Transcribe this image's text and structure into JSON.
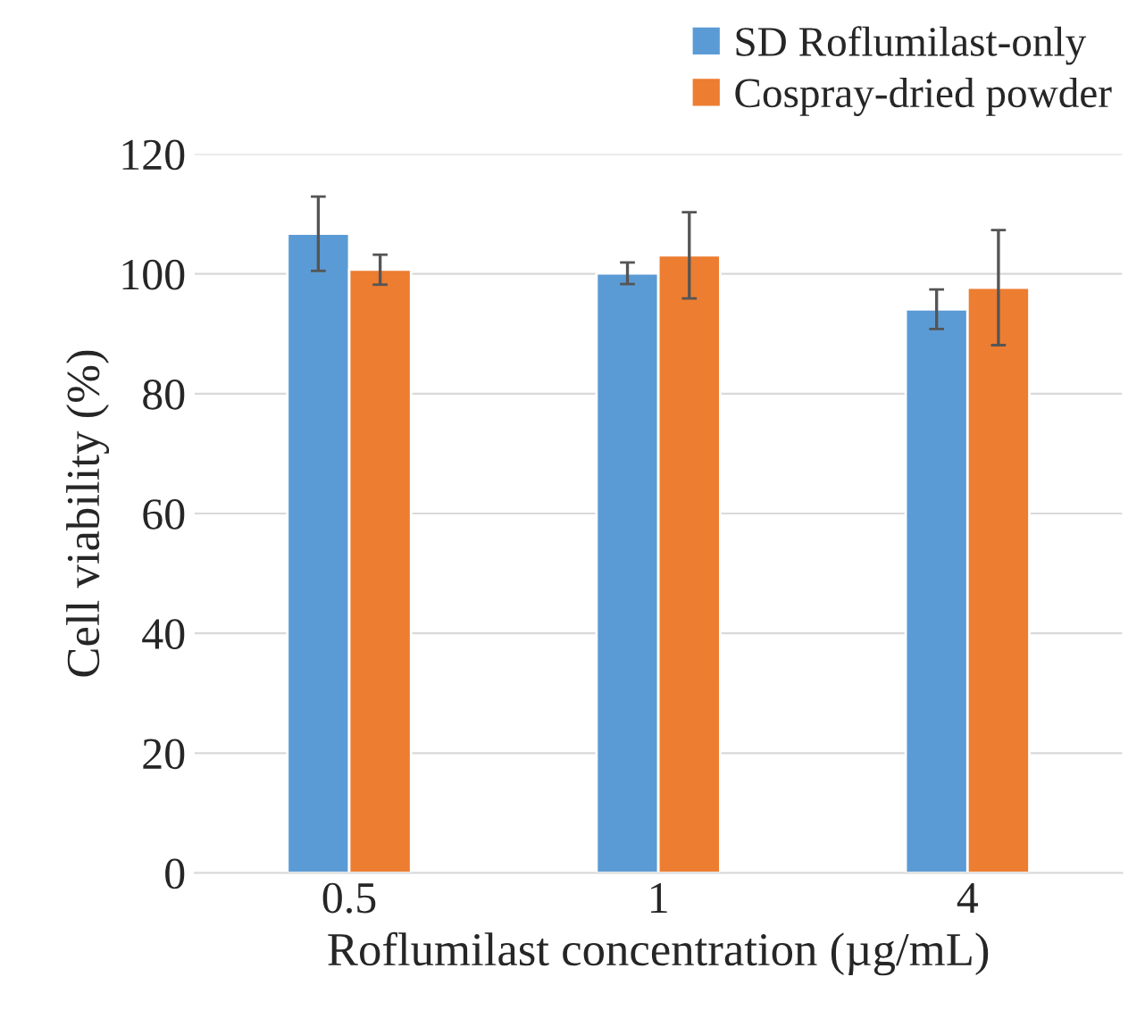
{
  "chart_data": {
    "type": "bar",
    "xlabel": "Roflumilast concentration (µg/mL)",
    "ylabel": "Cell viability (%)",
    "categories": [
      "0.5",
      "1",
      "4"
    ],
    "series": [
      {
        "name": "SD Roflumilast-only",
        "color": "#5b9bd5",
        "values": [
          106.7,
          100.1,
          94.1
        ],
        "errors": [
          6.2,
          1.8,
          3.3
        ]
      },
      {
        "name": "Cospray-dried powder",
        "color": "#ed7d31",
        "values": [
          100.7,
          103.1,
          97.7
        ],
        "errors": [
          2.5,
          7.2,
          9.6
        ]
      }
    ],
    "ylim": [
      0,
      120
    ],
    "yticks": [
      0,
      20,
      40,
      60,
      80,
      100,
      120
    ],
    "grid": "y",
    "legend": "top right"
  }
}
